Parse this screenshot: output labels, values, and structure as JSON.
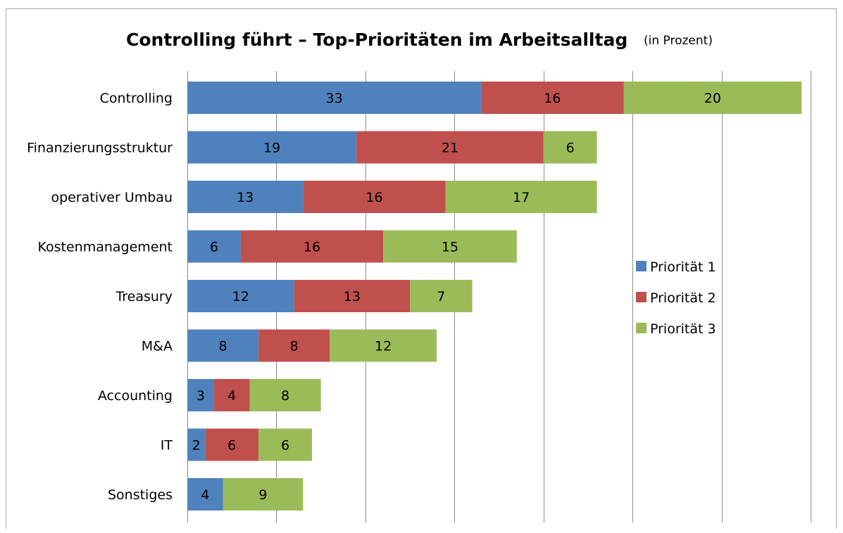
{
  "chart_data": {
    "type": "bar",
    "orientation": "horizontal",
    "stacked": true,
    "title": "Controlling führt – Top-Prioritäten im Arbeitsalltag",
    "subtitle": "(in Prozent)",
    "categories": [
      "Controlling",
      "Finanzierungsstruktur",
      "operativer Umbau",
      "Kostenmanagement",
      "Treasury",
      "M&A",
      "Accounting",
      "IT",
      "Sonstiges"
    ],
    "series": [
      {
        "name": "Priorität 1",
        "color": "#4f81bd",
        "values": [
          33,
          19,
          13,
          6,
          12,
          8,
          3,
          2,
          4
        ]
      },
      {
        "name": "Priorität 2",
        "color": "#c0504d",
        "values": [
          16,
          21,
          16,
          16,
          13,
          8,
          4,
          6,
          0
        ]
      },
      {
        "name": "Priorität 3",
        "color": "#9bbb59",
        "values": [
          20,
          6,
          17,
          15,
          7,
          12,
          8,
          6,
          9
        ]
      }
    ],
    "xlim": [
      0,
      70
    ],
    "xgrid_step": 10,
    "grid": true,
    "legend_position": "right"
  }
}
